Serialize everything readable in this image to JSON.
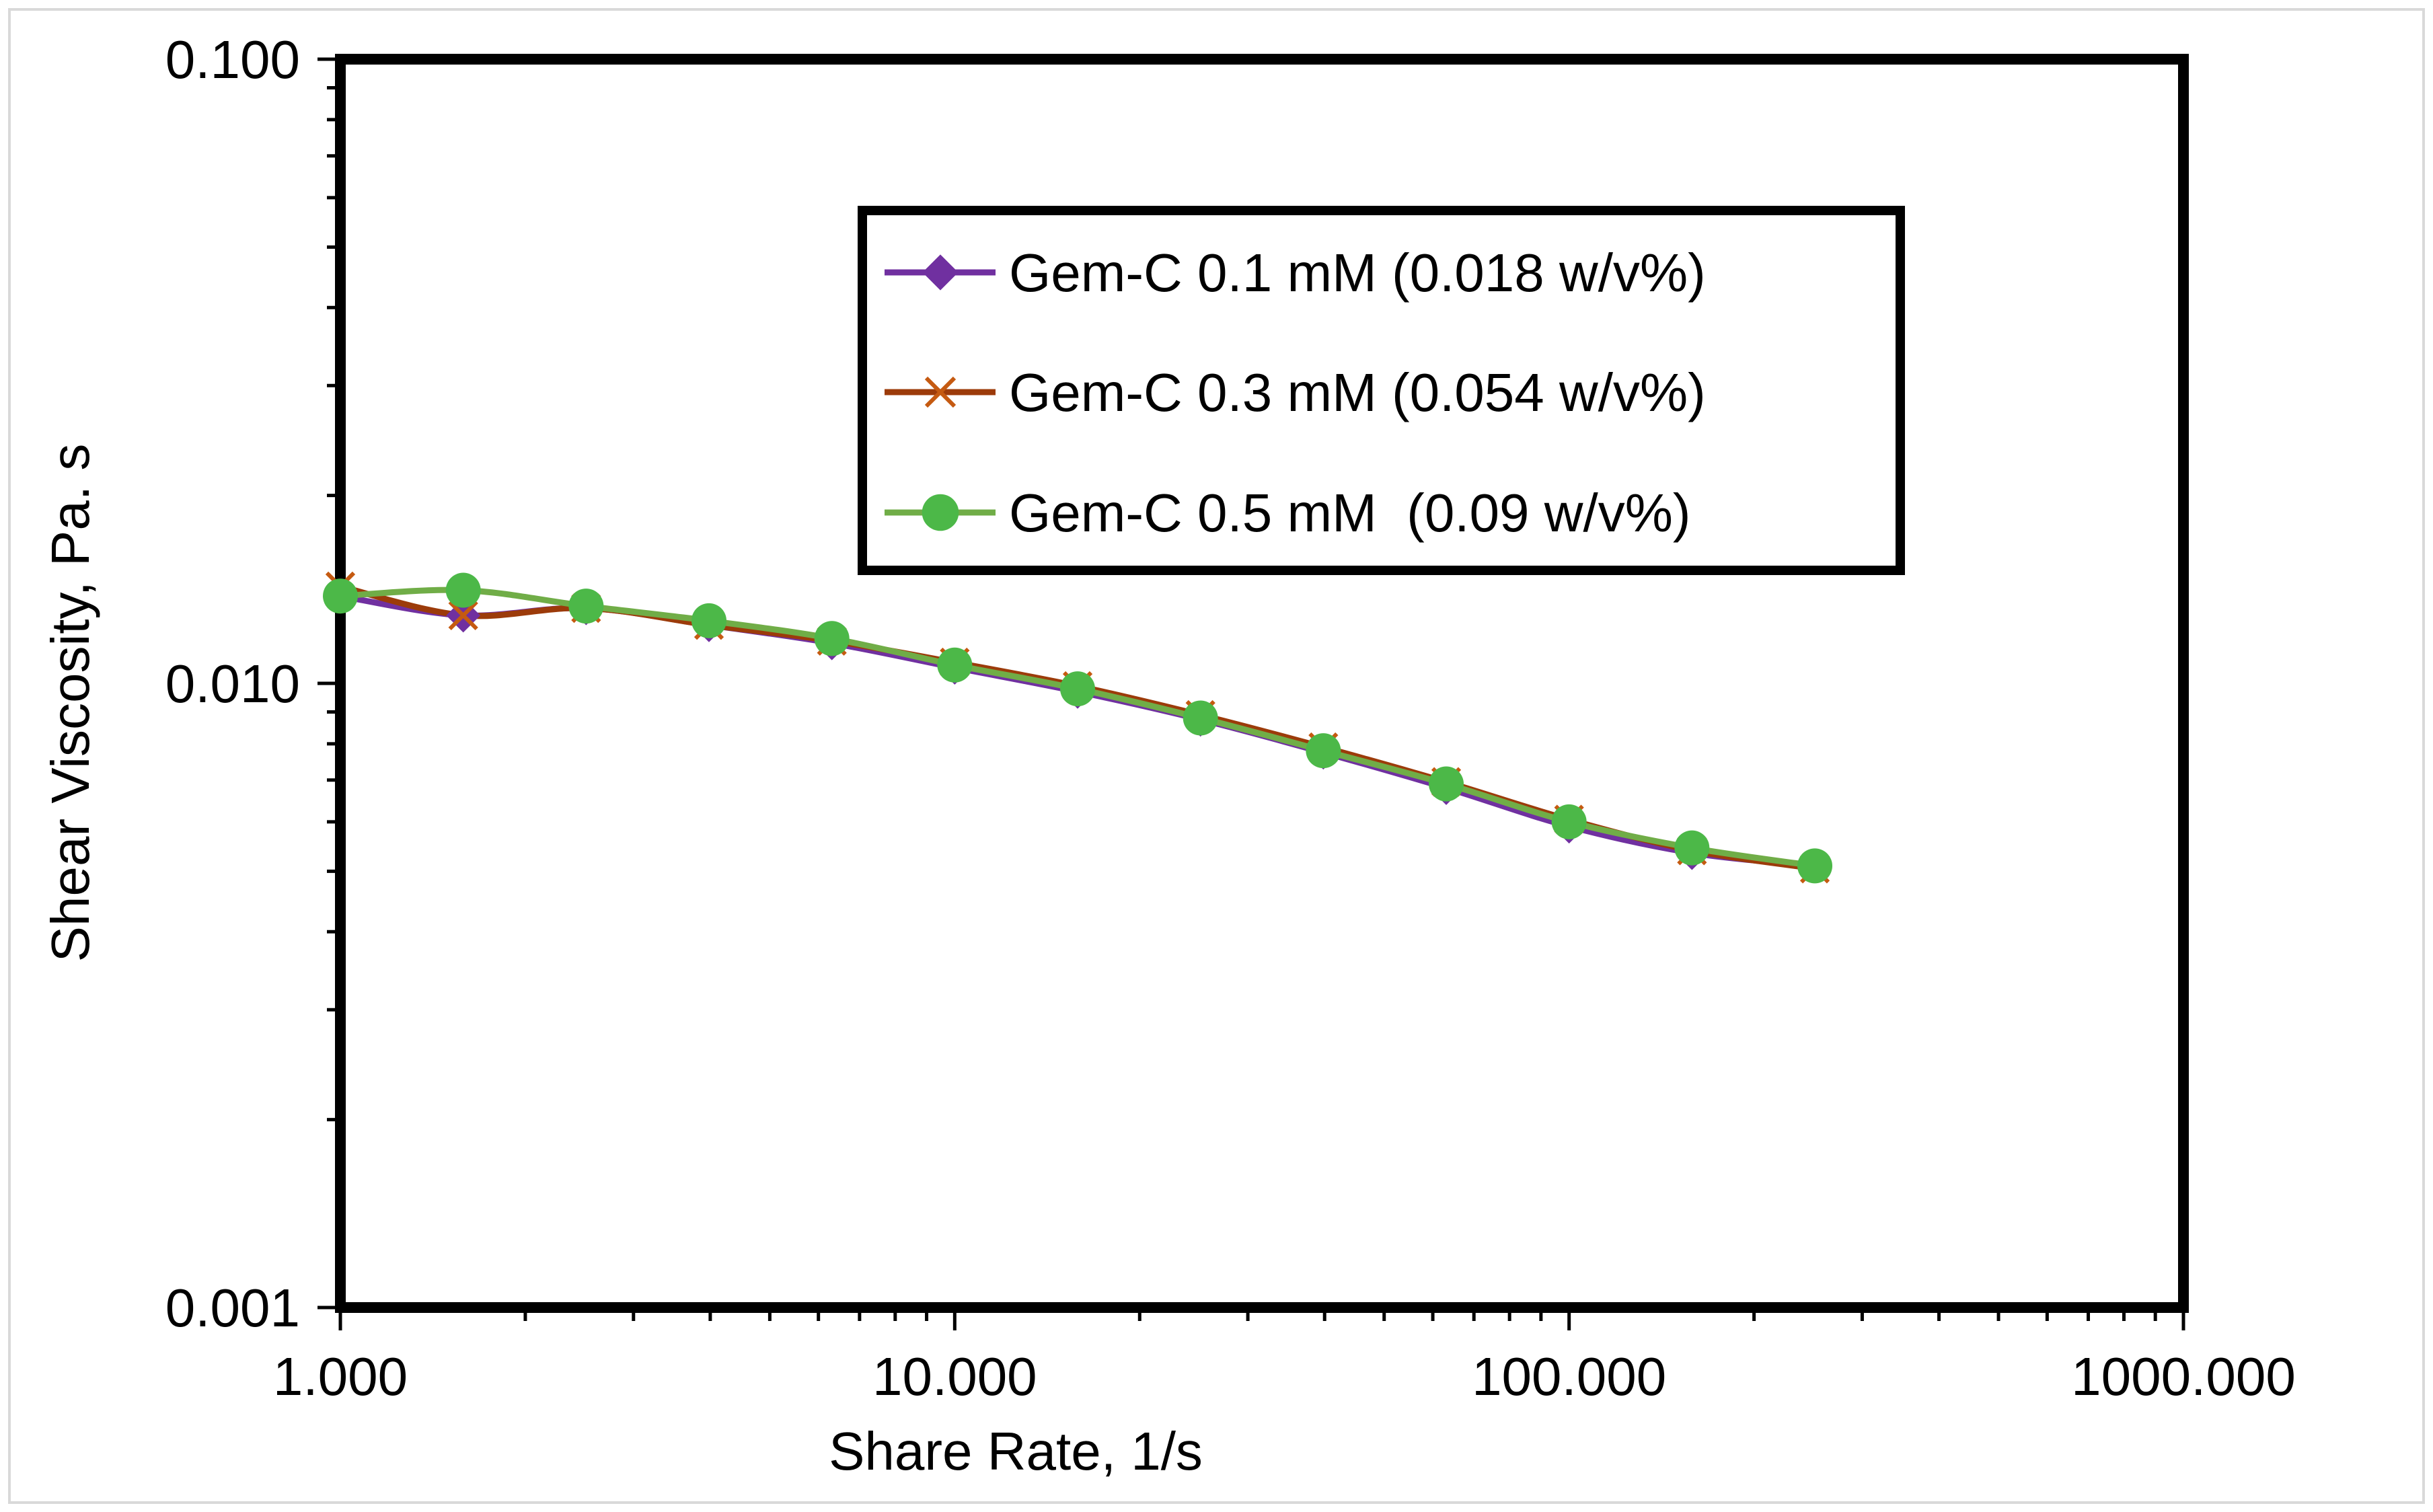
{
  "chart_data": {
    "type": "line",
    "title": "",
    "xlabel": "Share Rate, 1/s",
    "ylabel": "Shear Viscosity, Pa. s",
    "xscale": "log",
    "yscale": "log",
    "xlim": [
      1,
      1000
    ],
    "ylim": [
      0.001,
      0.1
    ],
    "x_tick_labels": [
      "1.000",
      "10.000",
      "100.000",
      "1000.000"
    ],
    "y_tick_labels": [
      "0.001",
      "0.010",
      "0.100"
    ],
    "legend_position": "top-center",
    "x": [
      1.0,
      1.585,
      2.512,
      3.981,
      6.31,
      10.0,
      15.85,
      25.12,
      39.81,
      63.1,
      100.0,
      158.5,
      251.2
    ],
    "series": [
      {
        "name": "Gem-C 0.1 mM (0.018 w/v%)",
        "color": "#7030A0",
        "marker": "diamond",
        "values": [
          0.0138,
          0.01285,
          0.0132,
          0.0124,
          0.0116,
          0.0106,
          0.0097,
          0.00875,
          0.00775,
          0.0068,
          0.0059,
          0.00535,
          0.0051
        ]
      },
      {
        "name": "Gem-C 0.3 mM (0.054 w/v%)",
        "color": "#C55A11",
        "line_color": "#9C3B0A",
        "marker": "x",
        "values": [
          0.0143,
          0.01285,
          0.0132,
          0.0124,
          0.0117,
          0.0108,
          0.0099,
          0.0089,
          0.0079,
          0.00695,
          0.00605,
          0.0054,
          0.00505
        ]
      },
      {
        "name": "Gem-C 0.5 mM  (0.09 w/v%)",
        "color": "#4CB848",
        "line_color": "#70AD47",
        "marker": "circle",
        "values": [
          0.0138,
          0.0141,
          0.0133,
          0.0126,
          0.0118,
          0.0107,
          0.0098,
          0.0088,
          0.0078,
          0.0069,
          0.006,
          0.00545,
          0.0051
        ]
      }
    ]
  }
}
